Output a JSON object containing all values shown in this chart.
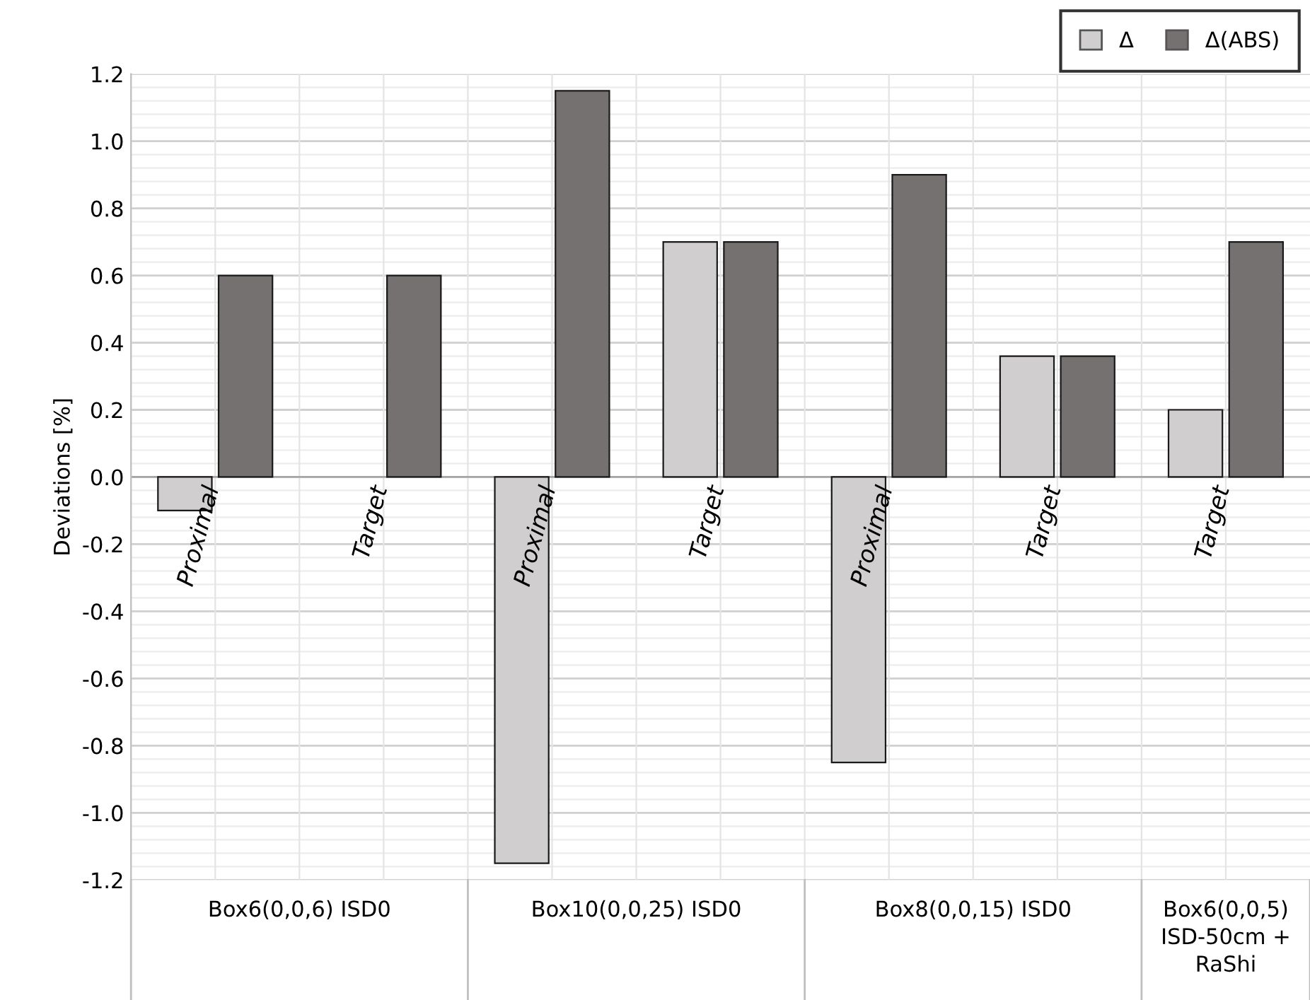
{
  "chart_data": {
    "type": "bar",
    "ylabel": "Deviations [%]",
    "categories": [
      "Proximal",
      "Target",
      "Proximal",
      "Target",
      "Proximal",
      "Target",
      "Target"
    ],
    "series": [
      {
        "name": "Δ",
        "color": "#d0cece",
        "values": [
          -0.1,
          null,
          -1.15,
          0.7,
          -0.85,
          0.36,
          0.2
        ]
      },
      {
        "name": "Δ(ABS)",
        "color": "#767171",
        "values": [
          0.6,
          0.6,
          1.15,
          0.7,
          0.9,
          0.36,
          0.7
        ]
      }
    ],
    "ylim": [
      -1.2,
      1.2
    ],
    "yticks": [
      {
        "value": -1.2,
        "label": "-1.2"
      },
      {
        "value": -1.0,
        "label": "-1.0"
      },
      {
        "value": -0.8,
        "label": "-0.8"
      },
      {
        "value": -0.6,
        "label": "-0.6"
      },
      {
        "value": -0.4,
        "label": "-0.4"
      },
      {
        "value": -0.2,
        "label": "-0.2"
      },
      {
        "value": 0,
        "label": "0.0"
      },
      {
        "value": 0.2,
        "label": "0.2"
      },
      {
        "value": 0.4,
        "label": "0.4"
      },
      {
        "value": 0.6,
        "label": "0.6"
      },
      {
        "value": 0.8,
        "label": "0.8"
      },
      {
        "value": 1.0,
        "label": "1.0"
      },
      {
        "value": 1.2,
        "label": "1.2"
      }
    ],
    "grid": true,
    "legend": "top right",
    "annotations": [
      "Box6(0,0,6) ISD0",
      "Box10(0,0,25) ISD0",
      "Box8(0,0,15) ISD0",
      "Box6(0,0,5)\nISD-50cm +\nRaShi"
    ]
  }
}
